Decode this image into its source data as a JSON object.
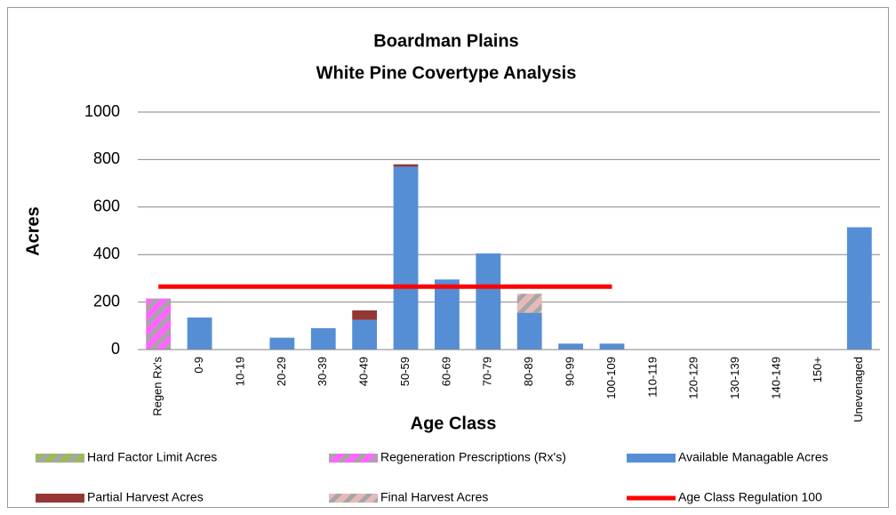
{
  "chart_data": {
    "type": "bar",
    "stacked": true,
    "title": "Boardman Plains",
    "subtitle": "White Pine Covertype Analysis",
    "y_label": "Acres",
    "x_label": "Age Class",
    "categories": [
      "Regen Rx's",
      "0-9",
      "10-19",
      "20-29",
      "30-39",
      "40-49",
      "50-59",
      "60-69",
      "70-79",
      "80-89",
      "90-99",
      "100-109",
      "110-119",
      "120-129",
      "130-139",
      "140-149",
      "150+",
      "Unevenaged"
    ],
    "ylim": [
      0,
      1000
    ],
    "yticks": [
      0,
      200,
      400,
      600,
      800,
      1000
    ],
    "grid": true,
    "legend": "bottom",
    "series": [
      {
        "name": "Hard Factor Limit Acres",
        "color": "#9bbb59",
        "pattern": "diagonal",
        "values": [
          0,
          0,
          0,
          0,
          0,
          0,
          0,
          0,
          0,
          0,
          0,
          0,
          0,
          0,
          0,
          0,
          0,
          0
        ]
      },
      {
        "name": "Regeneration Prescriptions (Rx's)",
        "color": "#ff66ff",
        "pattern": "diagonal",
        "values": [
          215,
          0,
          0,
          0,
          0,
          0,
          0,
          0,
          0,
          0,
          0,
          0,
          0,
          0,
          0,
          0,
          0,
          0
        ]
      },
      {
        "name": "Available Managable Acres",
        "color": "#558ed5",
        "values": [
          0,
          135,
          0,
          50,
          90,
          125,
          770,
          295,
          405,
          155,
          25,
          25,
          0,
          0,
          0,
          0,
          0,
          515
        ]
      },
      {
        "name": "Partial Harvest Acres",
        "color": "#953735",
        "values": [
          0,
          0,
          0,
          0,
          0,
          40,
          10,
          0,
          0,
          0,
          0,
          0,
          0,
          0,
          0,
          0,
          0,
          0
        ]
      },
      {
        "name": "Final Harvest Acres",
        "color": "#e6b9b8",
        "pattern": "diagonal",
        "values": [
          0,
          0,
          0,
          0,
          0,
          0,
          0,
          0,
          0,
          80,
          0,
          0,
          0,
          0,
          0,
          0,
          0,
          0
        ]
      },
      {
        "name": "Age Class Regulation 100",
        "color": "#ff0000",
        "type": "line",
        "values": [
          265,
          265,
          265,
          265,
          265,
          265,
          265,
          265,
          265,
          265,
          265,
          265,
          null,
          null,
          null,
          null,
          null,
          null
        ]
      }
    ]
  }
}
